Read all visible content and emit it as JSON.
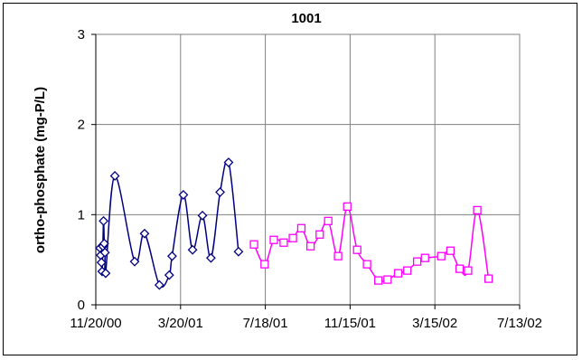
{
  "chart_data": {
    "type": "line",
    "title": "1001",
    "xlabel": "",
    "ylabel": "ortho-phosphate (mg-P/L)",
    "x_ticks": [
      "11/20/00",
      "3/20/01",
      "7/18/01",
      "11/15/01",
      "3/15/02",
      "7/13/02"
    ],
    "xlim": [
      "2000-11-20",
      "2002-07-13"
    ],
    "ylim": [
      0,
      3
    ],
    "y_ticks": [
      "0",
      "1",
      "2",
      "3"
    ],
    "grid": true,
    "legend": "none",
    "series": [
      {
        "color": "#000080",
        "marker": "diamond",
        "points": [
          {
            "x": "2000-11-26",
            "y": 0.63
          },
          {
            "x": "2000-11-27",
            "y": 0.55
          },
          {
            "x": "2000-11-28",
            "y": 0.47
          },
          {
            "x": "2000-11-29",
            "y": 0.37
          },
          {
            "x": "2000-11-30",
            "y": 0.65
          },
          {
            "x": "2000-12-01",
            "y": 0.93
          },
          {
            "x": "2000-12-02",
            "y": 0.68
          },
          {
            "x": "2000-12-03",
            "y": 0.58
          },
          {
            "x": "2000-12-04",
            "y": 0.35
          },
          {
            "x": "2000-12-17",
            "y": 1.43
          },
          {
            "x": "2001-01-14",
            "y": 0.48
          },
          {
            "x": "2001-01-28",
            "y": 0.79
          },
          {
            "x": "2001-02-18",
            "y": 0.22
          },
          {
            "x": "2001-03-04",
            "y": 0.33
          },
          {
            "x": "2001-03-08",
            "y": 0.54
          },
          {
            "x": "2001-03-24",
            "y": 1.22
          },
          {
            "x": "2001-04-06",
            "y": 0.61
          },
          {
            "x": "2001-04-20",
            "y": 0.99
          },
          {
            "x": "2001-05-02",
            "y": 0.52
          },
          {
            "x": "2001-05-15",
            "y": 1.25
          },
          {
            "x": "2001-05-27",
            "y": 1.58
          },
          {
            "x": "2001-06-10",
            "y": 0.59
          }
        ]
      },
      {
        "color": "#FF00FF",
        "marker": "square",
        "points": [
          {
            "x": "2001-07-02",
            "y": 0.67
          },
          {
            "x": "2001-07-17",
            "y": 0.45
          },
          {
            "x": "2001-07-30",
            "y": 0.72
          },
          {
            "x": "2001-08-13",
            "y": 0.69
          },
          {
            "x": "2001-08-26",
            "y": 0.74
          },
          {
            "x": "2001-09-07",
            "y": 0.85
          },
          {
            "x": "2001-09-20",
            "y": 0.65
          },
          {
            "x": "2001-10-03",
            "y": 0.78
          },
          {
            "x": "2001-10-15",
            "y": 0.93
          },
          {
            "x": "2001-10-29",
            "y": 0.54
          },
          {
            "x": "2001-11-11",
            "y": 1.09
          },
          {
            "x": "2001-11-25",
            "y": 0.61
          },
          {
            "x": "2001-12-09",
            "y": 0.45
          },
          {
            "x": "2001-12-25",
            "y": 0.27
          },
          {
            "x": "2002-01-07",
            "y": 0.28
          },
          {
            "x": "2002-01-22",
            "y": 0.35
          },
          {
            "x": "2002-02-04",
            "y": 0.38
          },
          {
            "x": "2002-02-18",
            "y": 0.48
          },
          {
            "x": "2002-03-01",
            "y": 0.52
          },
          {
            "x": "2002-03-24",
            "y": 0.54
          },
          {
            "x": "2002-04-06",
            "y": 0.6
          },
          {
            "x": "2002-04-19",
            "y": 0.4
          },
          {
            "x": "2002-05-01",
            "y": 0.38
          },
          {
            "x": "2002-05-14",
            "y": 1.05
          },
          {
            "x": "2002-05-30",
            "y": 0.29
          }
        ]
      }
    ]
  }
}
